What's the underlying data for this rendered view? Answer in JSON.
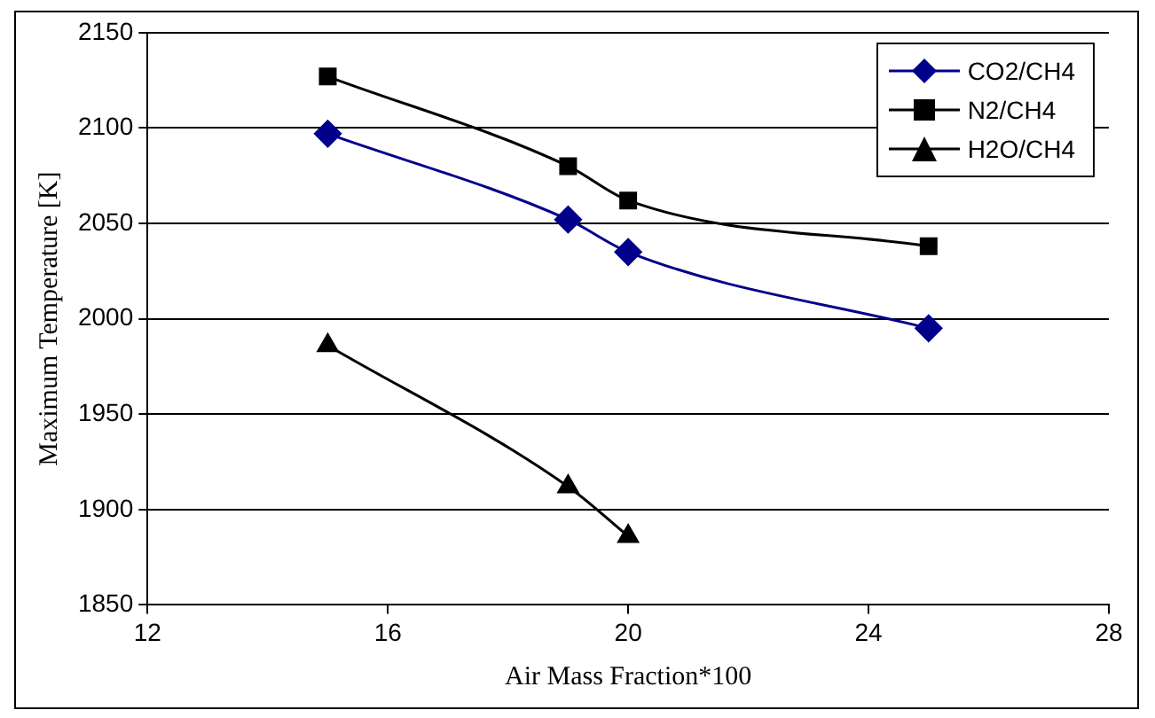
{
  "chart_data": {
    "type": "line",
    "xlabel": "Air Mass Fraction*100",
    "ylabel": "Maximum Temperature [K]",
    "xlim": [
      12,
      28
    ],
    "xticks": [
      12,
      16,
      20,
      24,
      28
    ],
    "ylim": [
      1850,
      2150
    ],
    "yticks": [
      1850,
      1900,
      1950,
      2000,
      2050,
      2100,
      2150
    ],
    "grid": "y",
    "legend": "top right",
    "line_style": "solid",
    "series": [
      {
        "name": "CO2/CH4",
        "color": "#00008b",
        "marker": "diamond",
        "x": [
          15,
          19,
          20,
          25
        ],
        "values": [
          2097,
          2052,
          2035,
          1995
        ]
      },
      {
        "name": "N2/CH4",
        "color": "#000000",
        "marker": "square",
        "x": [
          15,
          19,
          20,
          25
        ],
        "values": [
          2127,
          2080,
          2062,
          2038
        ]
      },
      {
        "name": "H2O/CH4",
        "color": "#000000",
        "marker": "triangle",
        "x": [
          15,
          19,
          20
        ],
        "values": [
          1986,
          1912,
          1886
        ]
      }
    ]
  }
}
